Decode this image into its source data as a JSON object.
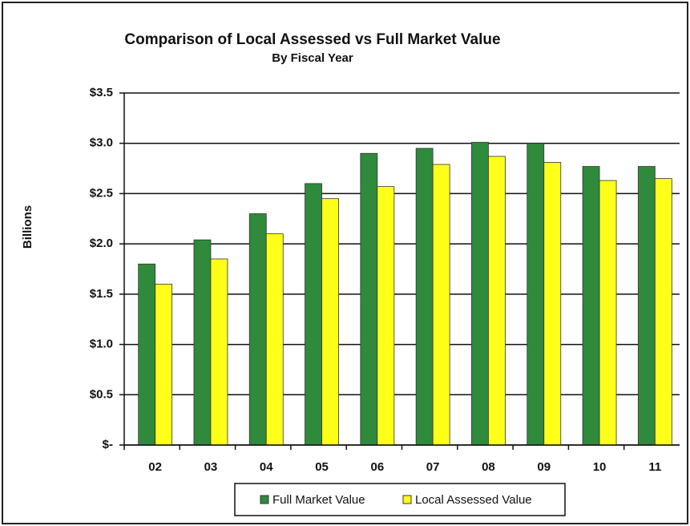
{
  "chart_data": {
    "type": "bar",
    "title": "Comparison of Local Assessed  vs Full Market Value",
    "subtitle": "By Fiscal Year",
    "y_label": "Billions",
    "categories": [
      "02",
      "03",
      "04",
      "05",
      "06",
      "07",
      "08",
      "09",
      "10",
      "11"
    ],
    "series": [
      {
        "name": "Full Market Value",
        "color": "#2f8a3c",
        "values": [
          1.8,
          2.04,
          2.3,
          2.6,
          2.9,
          2.95,
          3.01,
          3.0,
          2.77,
          2.77
        ]
      },
      {
        "name": "Local Assessed Value",
        "color": "#ffff1a",
        "values": [
          1.6,
          1.85,
          2.1,
          2.45,
          2.57,
          2.79,
          2.87,
          2.81,
          2.63,
          2.65
        ]
      }
    ],
    "ylim": [
      0,
      3.5
    ],
    "yticks": [
      {
        "value": 0,
        "label": "$-"
      },
      {
        "value": 0.5,
        "label": "$0.5"
      },
      {
        "value": 1,
        "label": "$1.0"
      },
      {
        "value": 1.5,
        "label": "$1.5"
      },
      {
        "value": 2,
        "label": "$2.0"
      },
      {
        "value": 2.5,
        "label": "$2.5"
      },
      {
        "value": 3,
        "label": "$3.0"
      },
      {
        "value": 3.5,
        "label": "$3.5"
      }
    ],
    "grid": true,
    "legend": "bottom"
  }
}
